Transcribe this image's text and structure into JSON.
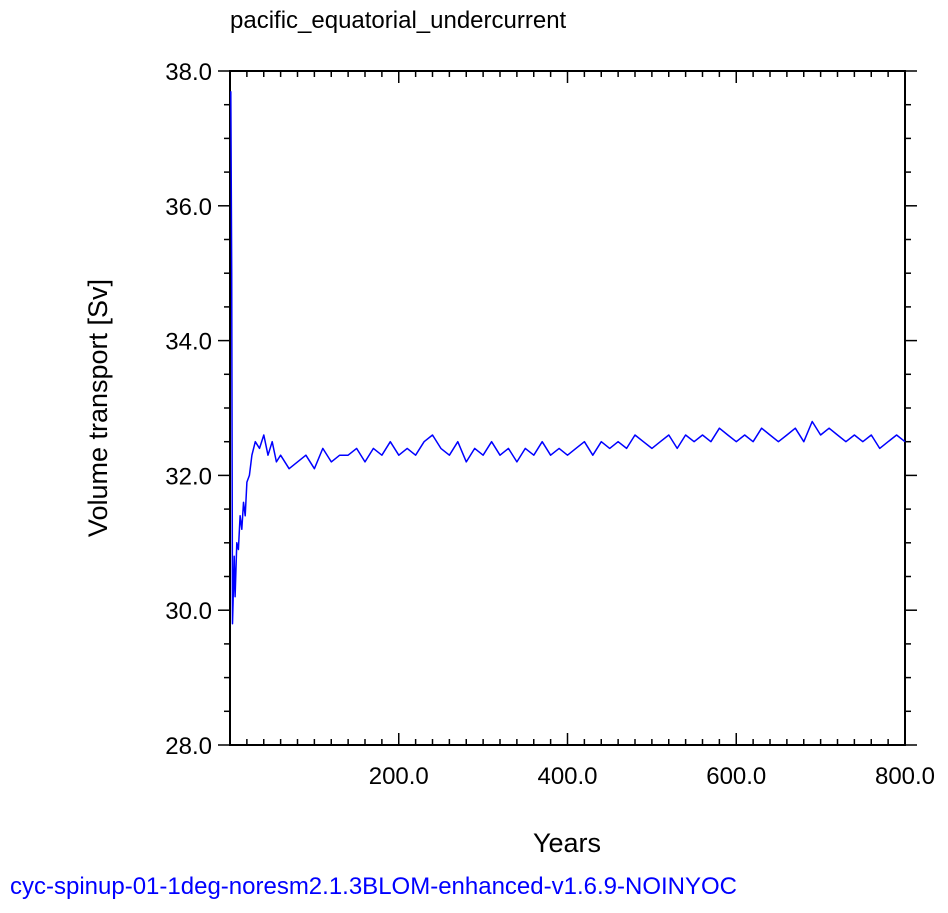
{
  "chart_data": {
    "type": "line",
    "title": "pacific_equatorial_undercurrent",
    "xlabel": "Years",
    "ylabel": "Volume transport [Sv]",
    "footer": "cyc-spinup-01-1deg-noresm2.1.3BLOM-enhanced-v1.6.9-NOINYOC",
    "xlim": [
      0,
      800
    ],
    "ylim": [
      28,
      38
    ],
    "x_ticks": [
      200,
      400,
      600,
      800
    ],
    "x_tick_labels": [
      "200.0",
      "400.0",
      "600.0",
      "800.0"
    ],
    "y_ticks": [
      28,
      30,
      32,
      34,
      36,
      38
    ],
    "y_tick_labels": [
      "28.0",
      "30.0",
      "32.0",
      "34.0",
      "36.0",
      "38.0"
    ],
    "grid": false,
    "legend": "none",
    "series": [
      {
        "color": "#0000ff",
        "x": [
          1,
          2,
          3,
          4,
          5,
          6,
          8,
          10,
          12,
          14,
          16,
          18,
          20,
          23,
          26,
          30,
          35,
          40,
          45,
          50,
          55,
          60,
          70,
          80,
          90,
          100,
          110,
          120,
          130,
          140,
          150,
          160,
          170,
          180,
          190,
          200,
          210,
          220,
          230,
          240,
          250,
          260,
          270,
          280,
          290,
          300,
          310,
          320,
          330,
          340,
          350,
          360,
          370,
          380,
          390,
          400,
          410,
          420,
          430,
          440,
          450,
          460,
          470,
          480,
          490,
          500,
          510,
          520,
          530,
          540,
          550,
          560,
          570,
          580,
          590,
          600,
          610,
          620,
          630,
          640,
          650,
          660,
          670,
          680,
          690,
          700,
          710,
          720,
          730,
          740,
          750,
          760,
          770,
          780,
          790,
          800
        ],
        "y": [
          37.7,
          35.0,
          29.8,
          30.3,
          30.8,
          30.2,
          31.0,
          30.9,
          31.4,
          31.2,
          31.6,
          31.4,
          31.9,
          32.0,
          32.3,
          32.5,
          32.4,
          32.6,
          32.3,
          32.5,
          32.2,
          32.3,
          32.1,
          32.2,
          32.3,
          32.1,
          32.4,
          32.2,
          32.3,
          32.3,
          32.4,
          32.2,
          32.4,
          32.3,
          32.5,
          32.3,
          32.4,
          32.3,
          32.5,
          32.6,
          32.4,
          32.3,
          32.5,
          32.2,
          32.4,
          32.3,
          32.5,
          32.3,
          32.4,
          32.2,
          32.4,
          32.3,
          32.5,
          32.3,
          32.4,
          32.3,
          32.4,
          32.5,
          32.3,
          32.5,
          32.4,
          32.5,
          32.4,
          32.6,
          32.5,
          32.4,
          32.5,
          32.6,
          32.4,
          32.6,
          32.5,
          32.6,
          32.5,
          32.7,
          32.6,
          32.5,
          32.6,
          32.5,
          32.7,
          32.6,
          32.5,
          32.6,
          32.7,
          32.5,
          32.8,
          32.6,
          32.7,
          32.6,
          32.5,
          32.6,
          32.5,
          32.6,
          32.4,
          32.5,
          32.6,
          32.5
        ]
      }
    ]
  }
}
